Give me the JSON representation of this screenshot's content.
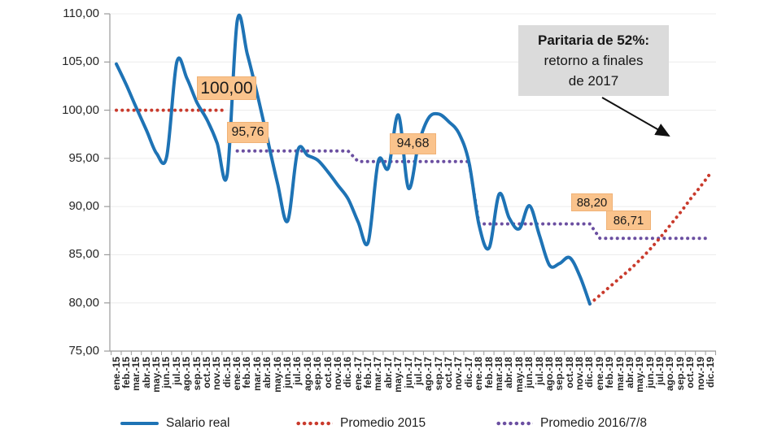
{
  "chart_data": {
    "type": "line",
    "title": "",
    "grid": "horizontal",
    "legend_position": "bottom",
    "y_range": [
      75,
      110
    ],
    "y_tick_step": 5,
    "y_tick_labels": [
      "110,00",
      "105,00",
      "100,00",
      "95,00",
      "90,00",
      "85,00",
      "80,00",
      "75,00"
    ],
    "x_categories": [
      "ene.-15",
      "feb.-15",
      "mar.-15",
      "abr.-15",
      "may.-15",
      "jun.-15",
      "jul.-15",
      "ago.-15",
      "sep.-15",
      "oct.-15",
      "nov.-15",
      "dic.-15",
      "ene.-16",
      "feb.-16",
      "mar.-16",
      "abr.-16",
      "may.-16",
      "jun.-16",
      "jul.-16",
      "ago.-16",
      "sep.-16",
      "oct.-16",
      "nov.-16",
      "dic.-16",
      "ene.-17",
      "feb.-17",
      "mar.-17",
      "abr.-17",
      "may.-17",
      "jun.-17",
      "jul.-17",
      "ago.-17",
      "sep.-17",
      "oct.-17",
      "nov.-17",
      "dic.-17",
      "ene.-18",
      "feb.-18",
      "mar.-18",
      "abr.-18",
      "may.-18",
      "jun.-18",
      "jul.-18",
      "ago.-18",
      "sep.-18",
      "oct.-18",
      "nov.-18",
      "dic.-18",
      "ene.-19",
      "feb.-19",
      "mar.-19",
      "abr.-19",
      "may.-19",
      "jun.-19",
      "jul.-19",
      "ago.-19",
      "sep.-19",
      "oct.-19",
      "nov.-19",
      "dic.-19"
    ],
    "series": [
      {
        "name": "Salario real",
        "style": "solid",
        "smooth": true,
        "color": "#1E73B5",
        "segments": [
          {
            "start": "ene.-15",
            "values": [
              104.8,
              102.6,
              100.2,
              97.9,
              95.5,
              95.2,
              105.0,
              103.3,
              100.8,
              99.0,
              96.6,
              93.3,
              109.3,
              105.8,
              101.6,
              97.0,
              92.4,
              88.5,
              95.8,
              95.3,
              94.8,
              93.6,
              92.2,
              90.8,
              88.4,
              86.3,
              94.7,
              94.0,
              99.5,
              91.9,
              96.5,
              99.2,
              99.6,
              98.8,
              97.6,
              94.6,
              88.1,
              85.7,
              91.3,
              88.8,
              87.7,
              90.1,
              87.0,
              83.9,
              84.1,
              84.7,
              82.8,
              79.9
            ]
          }
        ]
      },
      {
        "name": "Promedio 2015",
        "style": "dotted",
        "smooth": true,
        "color": "#C93A2C",
        "segments": [
          {
            "start": "ene.-15",
            "values": [
              100,
              100,
              100,
              100,
              100,
              100,
              100,
              100,
              100,
              100,
              100,
              100
            ]
          },
          {
            "start": "dic.-18",
            "values": [
              79.9,
              80.8,
              81.7,
              82.6,
              83.5,
              84.5,
              85.6,
              86.8,
              88.1,
              89.4,
              90.8,
              92.1,
              93.5
            ]
          }
        ]
      },
      {
        "name": "Promedio 2016/7/8",
        "style": "dotted",
        "smooth": false,
        "color": "#6B4FA1",
        "segments": [
          {
            "start": "ene.-16",
            "values": [
              95.76,
              95.76,
              95.76,
              95.76,
              95.76,
              95.76,
              95.76,
              95.76,
              95.76,
              95.76,
              95.76,
              95.76,
              94.68,
              94.68,
              94.68,
              94.68,
              94.68,
              94.68,
              94.68,
              94.68,
              94.68,
              94.68,
              94.68,
              94.68,
              88.2,
              88.2,
              88.2,
              88.2,
              88.2,
              88.2,
              88.2,
              88.2,
              88.2,
              88.2,
              88.2,
              88.2,
              86.71,
              86.71,
              86.71,
              86.71,
              86.71,
              86.71,
              86.71,
              86.71,
              86.71,
              86.71,
              86.71,
              86.71
            ]
          }
        ]
      }
    ],
    "value_labels": [
      {
        "text": "100,00",
        "value": 100.0
      },
      {
        "text": "95,76",
        "value": 95.76
      },
      {
        "text": "94,68",
        "value": 94.68
      },
      {
        "text": "88,20",
        "value": 88.2
      },
      {
        "text": "86,71",
        "value": 86.71
      }
    ],
    "annotation": {
      "line1": "Paritaria de 52%:",
      "line2": "retorno a finales",
      "line3": "de 2017"
    },
    "colors": {
      "salario_real": "#1E73B5",
      "promedio_2015": "#C93A2C",
      "promedio_2016_7_8": "#6B4FA1",
      "label_box": "#FAC38C",
      "annotation_box": "#DBDBDB",
      "axis": "#9B9B9B",
      "gridline": "#ECECEC"
    }
  }
}
